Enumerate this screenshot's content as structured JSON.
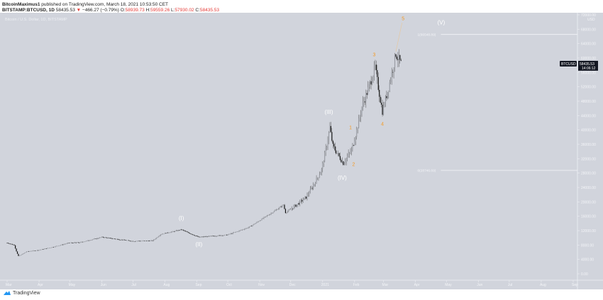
{
  "header": {
    "author": "BitcoinMaximus1",
    "published": "published on TradingView.com, March 18, 2021 10:53:50 CET",
    "symbol": "BITSTAMP:BTCUSD, 1D",
    "last": "58435.53",
    "change": "−466.27 (−0.79%)",
    "o_label": "O:",
    "o": "58939.73",
    "h_label": "H:",
    "h": "59559.26",
    "l_label": "L:",
    "l": "57930.02",
    "c_label": "C:",
    "c": "58435.53"
  },
  "chart_title": "Bitcoin / U.S. Dollar, 1D, BITSTAMP",
  "brand": "TradingView",
  "colors": {
    "background": "#d1d4dc",
    "candle": "#1a1a1a",
    "wave_major": "#ffffff",
    "wave_minor": "#f59a23",
    "down": "#e53935"
  },
  "chart_data": {
    "type": "candlestick",
    "symbol": "BTCUSD",
    "currency": "USD",
    "ylim": [
      0,
      72000
    ],
    "y_ticks": [
      "72000.00",
      "68000.00",
      "64000.00",
      "60000.00",
      "56000.00",
      "52000.00",
      "48000.00",
      "44000.00",
      "40000.00",
      "36000.00",
      "32000.00",
      "28000.00",
      "24000.00",
      "20000.00",
      "16000.00",
      "12000.00",
      "8000.00",
      "4000.00",
      "0.00"
    ],
    "x_ticks": [
      "Mar",
      "Apr",
      "May",
      "Jun",
      "Jul",
      "Aug",
      "Sep",
      "Oct",
      "Nov",
      "Dec",
      "2021",
      "Feb",
      "Mar",
      "Apr",
      "May",
      "Jun",
      "Jul",
      "Aug",
      "Sep"
    ],
    "x_range": [
      "2020-03-01",
      "2021-09-01"
    ],
    "price_path": [
      [
        "2020-03-01",
        8600
      ],
      [
        "2020-03-08",
        8000
      ],
      [
        "2020-03-12",
        4900
      ],
      [
        "2020-03-20",
        6200
      ],
      [
        "2020-04-01",
        6600
      ],
      [
        "2020-04-30",
        8600
      ],
      [
        "2020-05-10",
        8700
      ],
      [
        "2020-06-01",
        10200
      ],
      [
        "2020-06-30",
        9100
      ],
      [
        "2020-07-20",
        9200
      ],
      [
        "2020-07-28",
        11000
      ],
      [
        "2020-08-17",
        12300
      ],
      [
        "2020-09-03",
        10200
      ],
      [
        "2020-09-30",
        10800
      ],
      [
        "2020-10-21",
        12900
      ],
      [
        "2020-11-05",
        15600
      ],
      [
        "2020-11-24",
        19200
      ],
      [
        "2020-11-26",
        17000
      ],
      [
        "2020-12-16",
        21300
      ],
      [
        "2020-12-31",
        29000
      ],
      [
        "2021-01-08",
        40800
      ],
      [
        "2021-01-11",
        35500
      ],
      [
        "2021-01-21",
        30800
      ],
      [
        "2021-01-29",
        34300
      ],
      [
        "2021-02-08",
        46400
      ],
      [
        "2021-02-21",
        57500
      ],
      [
        "2021-02-28",
        45200
      ],
      [
        "2021-03-13",
        61200
      ],
      [
        "2021-03-18",
        58435.53
      ]
    ],
    "last_price": "58435.53",
    "countdown": "14:06:12",
    "fib_levels": [
      {
        "label": "1(66548.89)",
        "value": 66548.89,
        "from": "2021-04-03"
      },
      {
        "label": "0(28746.69)",
        "value": 28746.69,
        "from": "2021-04-03"
      }
    ],
    "annotations": [
      {
        "text": "(I)",
        "date": "2020-08-17",
        "price": 15000,
        "kind": "major"
      },
      {
        "text": "(II)",
        "date": "2020-09-03",
        "price": 7700,
        "kind": "major"
      },
      {
        "text": "(III)",
        "date": "2021-01-07",
        "price": 44500,
        "kind": "major"
      },
      {
        "text": "(IV)",
        "date": "2021-01-20",
        "price": 26200,
        "kind": "major"
      },
      {
        "text": "(V)",
        "date": "2021-04-26",
        "price": 69300,
        "kind": "major"
      },
      {
        "text": "1",
        "date": "2021-01-28",
        "price": 40200,
        "kind": "minor"
      },
      {
        "text": "2",
        "date": "2021-01-31",
        "price": 30000,
        "kind": "minor"
      },
      {
        "text": "3",
        "date": "2021-02-20",
        "price": 60500,
        "kind": "minor"
      },
      {
        "text": "4",
        "date": "2021-02-28",
        "price": 41200,
        "kind": "minor"
      },
      {
        "text": "5",
        "date": "2021-03-20",
        "price": 70500,
        "kind": "minor"
      }
    ]
  }
}
